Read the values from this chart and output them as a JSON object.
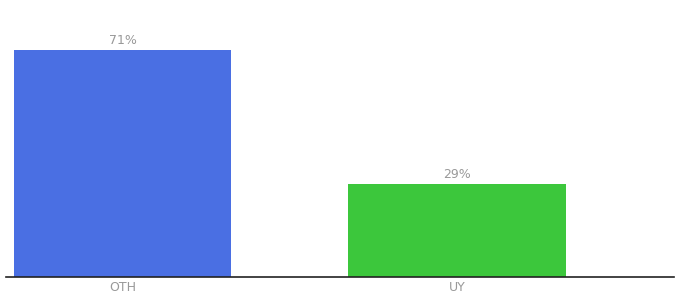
{
  "categories": [
    "OTH",
    "UY"
  ],
  "values": [
    71,
    29
  ],
  "bar_colors": [
    "#4A6FE3",
    "#3CC73C"
  ],
  "label_color": "#999999",
  "label_fontsize": 9,
  "tick_fontsize": 9,
  "tick_color": "#999999",
  "background_color": "#ffffff",
  "ylim": [
    0,
    85
  ],
  "bar_width": 0.65
}
